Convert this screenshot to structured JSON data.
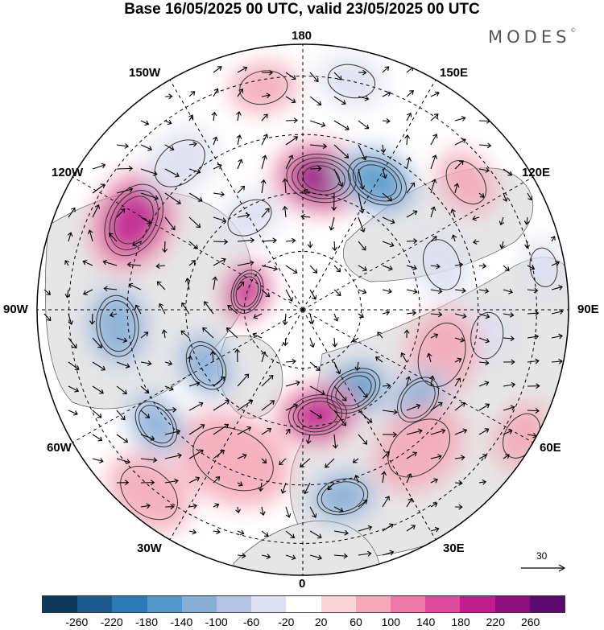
{
  "title": "Base 16/05/2025 00 UTC, valid 23/05/2025 00 UTC",
  "brand": "MODES",
  "brand_mark": "©",
  "longitude_labels": {
    "n180": "180",
    "w150": "150W",
    "e150": "150E",
    "w120": "120W",
    "e120": "120E",
    "w90": "90W",
    "e90": "90E",
    "w60": "60W",
    "e60": "60E",
    "w30": "30W",
    "e30": "30E",
    "s0": "0"
  },
  "reference_vector_label": "30",
  "colorbar": {
    "colors": [
      "#0d3a5c",
      "#1a5b8c",
      "#2c7bb6",
      "#4f98c9",
      "#87aed6",
      "#b4c4e3",
      "#dedff0",
      "#ffffff",
      "#f9d5d8",
      "#f4a9b8",
      "#ee79a9",
      "#e04a9c",
      "#c01e8f",
      "#8e0f7e",
      "#5c0a6e"
    ],
    "ticks": [
      "-260",
      "-220",
      "-180",
      "-140",
      "-100",
      "-60",
      "-20",
      "20",
      "60",
      "100",
      "140",
      "180",
      "220",
      "260"
    ]
  },
  "anomalies": [
    {
      "lon": 172,
      "r": 0.5,
      "value": 230,
      "size": 1.3
    },
    {
      "lon": 150,
      "r": 0.56,
      "value": -170,
      "size": 1.2
    },
    {
      "lon": 128,
      "r": 0.78,
      "value": 80,
      "size": 1.0
    },
    {
      "lon": 108,
      "r": 0.55,
      "value": -50,
      "size": 1.1
    },
    {
      "lon": 82,
      "r": 0.7,
      "value": -40,
      "size": 1.0
    },
    {
      "lon": 72,
      "r": 0.55,
      "value": 60,
      "size": 1.4
    },
    {
      "lon": 52,
      "r": 0.55,
      "value": -110,
      "size": 1.0
    },
    {
      "lon": 32,
      "r": 0.36,
      "value": -160,
      "size": 1.1
    },
    {
      "lon": 8,
      "r": 0.4,
      "value": 180,
      "size": 1.1
    },
    {
      "lon": 40,
      "r": 0.68,
      "value": 60,
      "size": 1.5
    },
    {
      "lon": 12,
      "r": 0.72,
      "value": -130,
      "size": 1.0
    },
    {
      "lon": -25,
      "r": 0.62,
      "value": 80,
      "size": 1.8
    },
    {
      "lon": -52,
      "r": 0.7,
      "value": -120,
      "size": 1.0
    },
    {
      "lon": -60,
      "r": 0.42,
      "value": -130,
      "size": 1.0
    },
    {
      "lon": -85,
      "r": 0.7,
      "value": -150,
      "size": 1.2
    },
    {
      "lon": -108,
      "r": 0.22,
      "value": 170,
      "size": 0.8
    },
    {
      "lon": -118,
      "r": 0.72,
      "value": 180,
      "size": 1.5
    },
    {
      "lon": -140,
      "r": 0.72,
      "value": -60,
      "size": 1.2
    },
    {
      "lon": -150,
      "r": 0.4,
      "value": -40,
      "size": 1.0
    },
    {
      "lon": -170,
      "r": 0.85,
      "value": 70,
      "size": 1.0
    },
    {
      "lon": 168,
      "r": 0.88,
      "value": -60,
      "size": 1.0
    },
    {
      "lon": 100,
      "r": 0.92,
      "value": -70,
      "size": 0.8
    },
    {
      "lon": 60,
      "r": 0.95,
      "value": 60,
      "size": 1.0
    },
    {
      "lon": -40,
      "r": 0.9,
      "value": 40,
      "size": 1.4
    }
  ]
}
